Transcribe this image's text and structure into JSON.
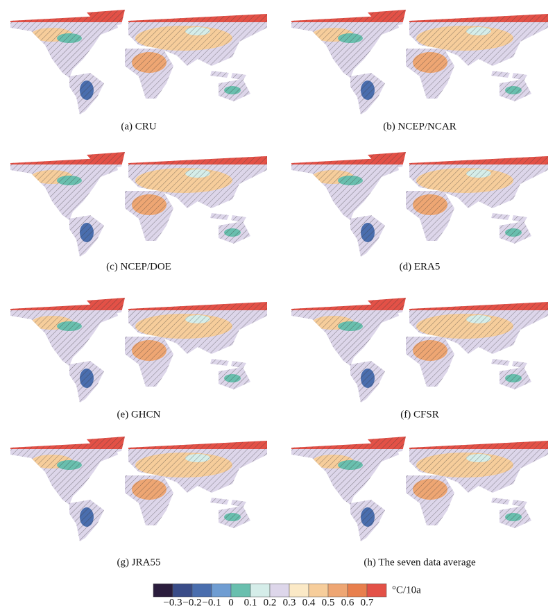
{
  "panels": [
    {
      "label": "(a) CRU"
    },
    {
      "label": "(b) NCEP/NCAR"
    },
    {
      "label": "(c) NCEP/DOE"
    },
    {
      "label": "(d) ERA5"
    },
    {
      "label": "(e) GHCN"
    },
    {
      "label": "(f) CFSR"
    },
    {
      "label": "(g) JRA55"
    },
    {
      "label": "(h) The seven data average"
    }
  ],
  "colorbar": {
    "unit": "°C/10a",
    "ticks": [
      "−0.3",
      "−0.2",
      "−0.1",
      "0",
      "0.1",
      "0.2",
      "0.3",
      "0.4",
      "0.5",
      "0.6",
      "0.7"
    ],
    "colors": [
      "#2b1d3d",
      "#3a4c88",
      "#4a6eae",
      "#6f9dd2",
      "#69bfae",
      "#d5ede9",
      "#ddd6ea",
      "#fbe9c6",
      "#f6cd9b",
      "#eea673",
      "#e87f4d",
      "#e35147"
    ]
  }
}
